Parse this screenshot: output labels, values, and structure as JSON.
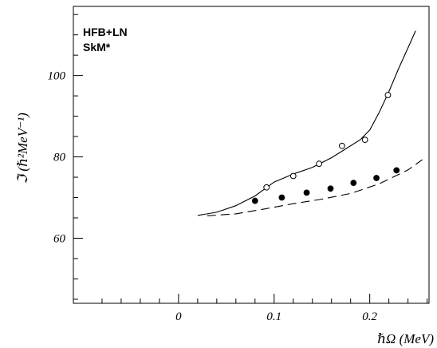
{
  "chart_data": {
    "type": "line",
    "annotations": [
      "HFB+LN",
      "SkM*"
    ],
    "xlabel": "ℏΩ (MeV)",
    "ylabel": "ℑ (ℏ²MeV⁻¹)",
    "xlim": [
      -0.11,
      0.262
    ],
    "ylim": [
      44,
      117
    ],
    "xticks": [
      {
        "value": 0,
        "label": "0"
      },
      {
        "value": 0.1,
        "label": "0.1"
      },
      {
        "value": 0.2,
        "label": "0.2"
      }
    ],
    "yticks": [
      {
        "value": 60,
        "label": "60"
      },
      {
        "value": 80,
        "label": "80"
      },
      {
        "value": 100,
        "label": "100"
      }
    ],
    "grid": false,
    "series": [
      {
        "style": "solid-line",
        "x": [
          0.02,
          0.04,
          0.06,
          0.08,
          0.1,
          0.12,
          0.14,
          0.16,
          0.175,
          0.19,
          0.2,
          0.21,
          0.22,
          0.23,
          0.24,
          0.248
        ],
        "y": [
          65.6,
          66.4,
          68.0,
          70.4,
          73.8,
          75.8,
          77.4,
          79.8,
          82.0,
          84.2,
          86.6,
          91.0,
          96.0,
          101.6,
          106.8,
          111.0
        ]
      },
      {
        "style": "dashed-line",
        "x": [
          0.03,
          0.06,
          0.09,
          0.12,
          0.15,
          0.18,
          0.21,
          0.24,
          0.255
        ],
        "y": [
          65.5,
          66.0,
          67.2,
          68.5,
          69.6,
          71.0,
          73.4,
          76.8,
          79.3
        ]
      },
      {
        "style": "open-circles",
        "x": [
          0.092,
          0.12,
          0.147,
          0.171,
          0.195,
          0.219
        ],
        "y": [
          72.5,
          75.3,
          78.3,
          82.7,
          84.2,
          95.2
        ]
      },
      {
        "style": "filled-circles",
        "x": [
          0.08,
          0.108,
          0.134,
          0.159,
          0.183,
          0.207,
          0.228
        ],
        "y": [
          69.2,
          70.0,
          71.2,
          72.2,
          73.6,
          74.8,
          76.7
        ]
      }
    ]
  }
}
